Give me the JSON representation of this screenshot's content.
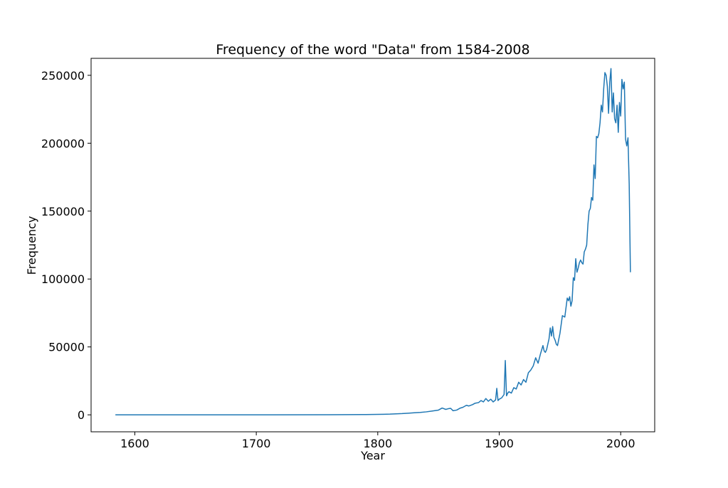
{
  "chart_data": {
    "type": "line",
    "title": "Frequency of the word \"Data\" from 1584-2008",
    "xlabel": "Year",
    "ylabel": "Frequency",
    "xlim": [
      1564,
      2028
    ],
    "ylim": [
      -12500,
      262500
    ],
    "xticks": [
      1600,
      1700,
      1800,
      1900,
      2000
    ],
    "yticks": [
      0,
      50000,
      100000,
      150000,
      200000,
      250000
    ],
    "grid": false,
    "line_color": "#1f77b4",
    "series": [
      {
        "x": [
          1584,
          1700,
          1760,
          1790,
          1800,
          1805,
          1810,
          1815,
          1820,
          1825,
          1830,
          1835,
          1840,
          1845,
          1850,
          1853,
          1856,
          1858,
          1860,
          1862,
          1865,
          1868,
          1870,
          1873,
          1875,
          1878,
          1880,
          1883,
          1885,
          1887,
          1889,
          1891,
          1893,
          1895,
          1897,
          1898,
          1899,
          1900,
          1902,
          1904,
          1905,
          1906,
          1907,
          1908,
          1910,
          1912,
          1914,
          1916,
          1918,
          1920,
          1922,
          1924,
          1926,
          1928,
          1930,
          1932,
          1934,
          1936,
          1937,
          1938,
          1939,
          1940,
          1941,
          1942,
          1943,
          1944,
          1945,
          1946,
          1947,
          1948,
          1950,
          1952,
          1954,
          1956,
          1957,
          1958,
          1959,
          1960,
          1961,
          1962,
          1963,
          1964,
          1965,
          1966,
          1967,
          1968,
          1969,
          1970,
          1971,
          1972,
          1973,
          1974,
          1975,
          1976,
          1977,
          1978,
          1979,
          1980,
          1981,
          1982,
          1983,
          1984,
          1985,
          1986,
          1987,
          1988,
          1989,
          1990,
          1991,
          1992,
          1993,
          1994,
          1995,
          1996,
          1997,
          1998,
          1999,
          2000,
          2001,
          2002,
          2003,
          2004,
          2005,
          2006,
          2007,
          2008
        ],
        "y": [
          0,
          0,
          100,
          200,
          300,
          400,
          500,
          700,
          900,
          1200,
          1500,
          1800,
          2200,
          2800,
          3500,
          5000,
          4000,
          4500,
          4800,
          3000,
          3500,
          5000,
          5500,
          7000,
          6500,
          7500,
          8500,
          9000,
          10500,
          9500,
          12000,
          10000,
          11500,
          9500,
          11000,
          19500,
          10500,
          11500,
          12500,
          15000,
          40000,
          14000,
          16000,
          17000,
          16000,
          20000,
          19000,
          24000,
          22000,
          26000,
          24000,
          31000,
          33000,
          36000,
          42000,
          38000,
          45000,
          51000,
          47000,
          46000,
          48000,
          52000,
          56000,
          64000,
          58000,
          65000,
          57000,
          55000,
          52000,
          51000,
          60000,
          73000,
          72000,
          86000,
          84000,
          87000,
          80000,
          84000,
          101000,
          99000,
          115000,
          105000,
          108000,
          112000,
          114000,
          112000,
          111000,
          120000,
          122000,
          125000,
          140000,
          150000,
          152000,
          160000,
          158000,
          184000,
          174000,
          205000,
          204000,
          207000,
          215000,
          228000,
          223000,
          240000,
          252000,
          250000,
          242000,
          222000,
          245000,
          255000,
          223000,
          237000,
          218000,
          215000,
          228000,
          208000,
          230000,
          220000,
          247000,
          240000,
          245000,
          203000,
          198000,
          204000,
          170000,
          105000
        ]
      }
    ]
  }
}
